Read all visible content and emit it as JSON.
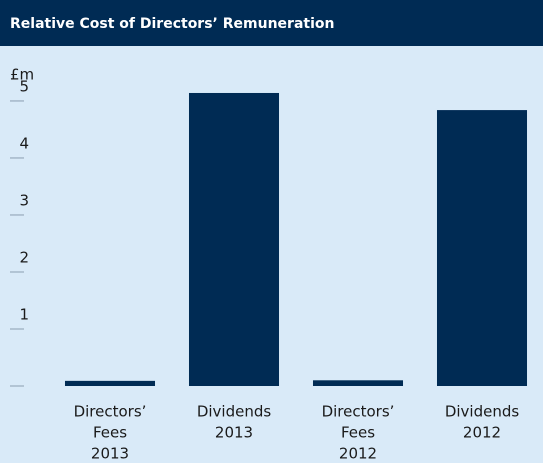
{
  "chart_data": {
    "type": "bar",
    "title": "Relative Cost of Directors’ Remuneration",
    "ylabel": "£m",
    "categories": [
      [
        "Directors’",
        "Fees",
        "2013"
      ],
      [
        "Dividends",
        "2013"
      ],
      [
        "Directors’",
        "Fees",
        "2012"
      ],
      [
        "Dividends",
        "2012"
      ]
    ],
    "values": [
      0.09,
      5.14,
      0.1,
      4.84
    ],
    "color": "#002b54",
    "ylim": [
      0,
      5.28
    ],
    "yticks": [
      1,
      2,
      3,
      4,
      5
    ],
    "grid": false
  }
}
